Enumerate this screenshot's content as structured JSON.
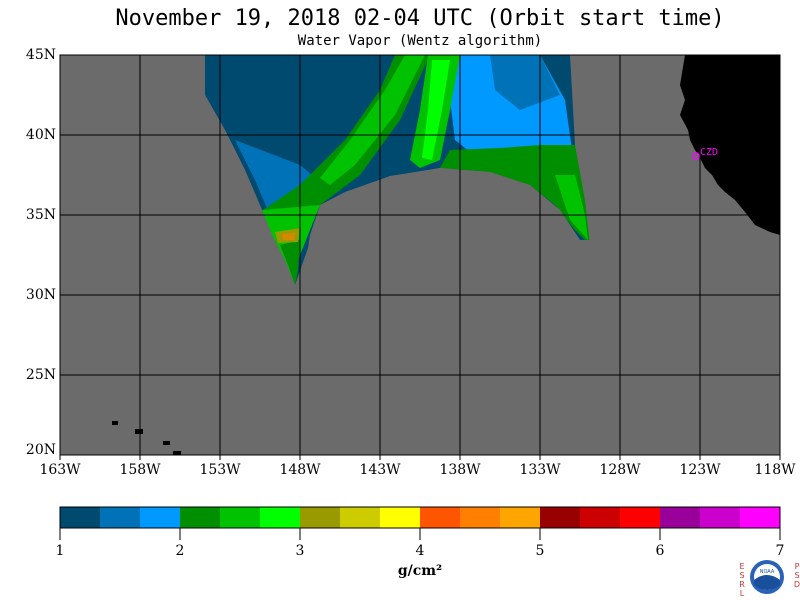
{
  "header": {
    "title": "November 19, 2018  02-04 UTC  (Orbit start time)",
    "subtitle": "Water Vapor (Wentz algorithm)"
  },
  "map": {
    "latitude_labels": [
      "45N",
      "40N",
      "35N",
      "30N",
      "25N",
      "20N"
    ],
    "longitude_labels": [
      "163W",
      "158W",
      "153W",
      "148W",
      "143W",
      "138W",
      "133W",
      "128W",
      "123W",
      "118W"
    ],
    "site_label": "CZD",
    "colors": {
      "no_data": "#6b6b6b",
      "land": "#000000",
      "grid": "#000000",
      "site": "#ff00ff"
    }
  },
  "colorbar": {
    "ticks": [
      "1",
      "2",
      "3",
      "4",
      "5",
      "6",
      "7"
    ],
    "units": "g/cm²",
    "colors": [
      "#004a70",
      "#0073b8",
      "#0099ff",
      "#008f00",
      "#00c200",
      "#00ff00",
      "#999900",
      "#cccc00",
      "#ffff00",
      "#ff5500",
      "#ff7f00",
      "#ffa500",
      "#990000",
      "#cc0000",
      "#ff0000",
      "#990099",
      "#cc00cc",
      "#ff00ff"
    ]
  },
  "credit": {
    "left_letters": "ESRL",
    "right_letters": "PSD",
    "logo_text": "NOAA"
  }
}
